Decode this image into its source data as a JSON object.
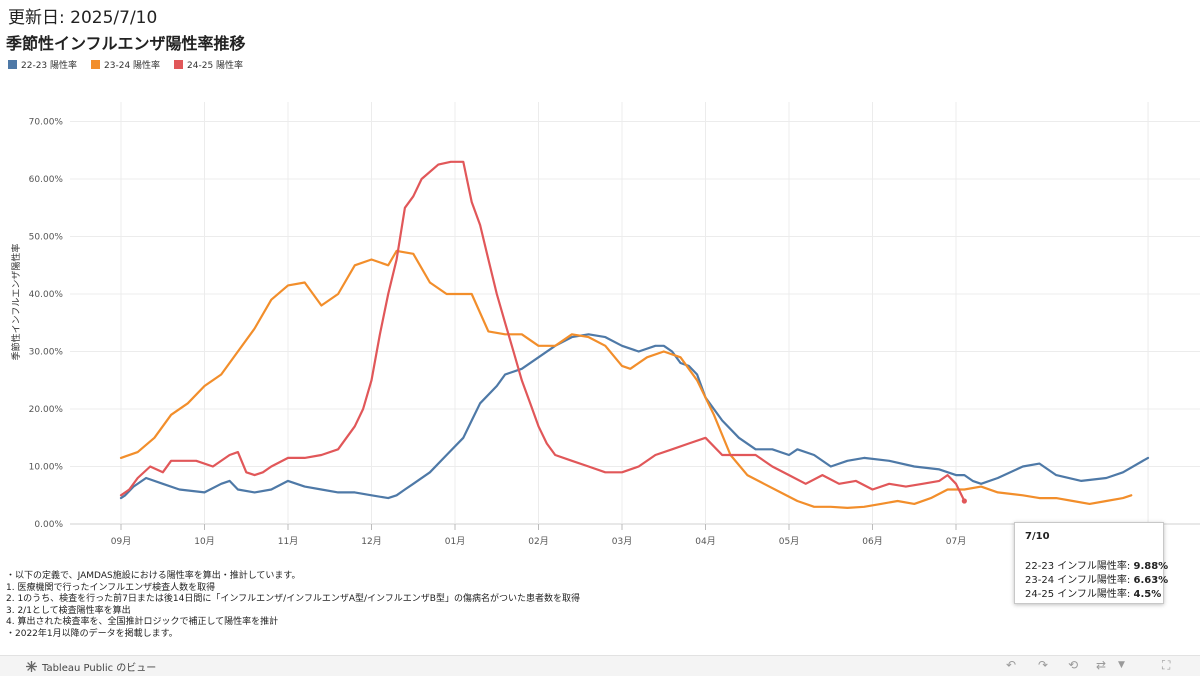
{
  "header": {
    "updated": "更新日: 2025/7/10",
    "title": "季節性インフルエンザ陽性率推移"
  },
  "chart_data": {
    "type": "line",
    "ylabel": "季節性インフルエンザ陽性率",
    "y_range": [
      0,
      0.72
    ],
    "y_ticks": [
      0,
      0.1,
      0.2,
      0.3,
      0.4,
      0.5,
      0.6,
      0.7
    ],
    "y_tick_labels": [
      "0.00%",
      "10.00%",
      "20.00%",
      "30.00%",
      "40.00%",
      "50.00%",
      "60.00%",
      "70.00%"
    ],
    "x_ticks": [
      "09月",
      "10月",
      "11月",
      "12月",
      "01月",
      "02月",
      "03月",
      "04月",
      "05月",
      "06月",
      "07月"
    ],
    "grid": true,
    "legend_position": "top-left",
    "x_months_range": [
      0,
      12.3
    ],
    "series": [
      {
        "name": "22-23 陽性率",
        "color": "#4e79a7",
        "x": [
          0,
          0.05,
          0.15,
          0.3,
          0.5,
          0.7,
          1.0,
          1.2,
          1.3,
          1.4,
          1.6,
          1.8,
          2.0,
          2.2,
          2.4,
          2.6,
          2.8,
          3.0,
          3.2,
          3.3,
          3.4,
          3.5,
          3.7,
          3.9,
          4.1,
          4.2,
          4.3,
          4.5,
          4.6,
          4.8,
          5.0,
          5.2,
          5.4,
          5.6,
          5.8,
          6.0,
          6.2,
          6.4,
          6.5,
          6.6,
          6.7,
          6.8,
          6.9,
          7.0,
          7.2,
          7.4,
          7.6,
          7.8,
          8.0,
          8.1,
          8.3,
          8.5,
          8.7,
          8.9,
          9.2,
          9.5,
          9.8,
          10.0,
          10.1,
          10.2,
          10.3,
          10.5,
          10.8,
          11.0,
          11.2,
          11.5,
          11.8,
          12.0
        ],
        "y": [
          0.045,
          0.05,
          0.065,
          0.08,
          0.07,
          0.06,
          0.055,
          0.07,
          0.075,
          0.06,
          0.055,
          0.06,
          0.075,
          0.065,
          0.06,
          0.055,
          0.055,
          0.05,
          0.045,
          0.05,
          0.06,
          0.07,
          0.09,
          0.12,
          0.15,
          0.18,
          0.21,
          0.24,
          0.26,
          0.27,
          0.29,
          0.31,
          0.325,
          0.33,
          0.325,
          0.31,
          0.3,
          0.31,
          0.31,
          0.3,
          0.28,
          0.275,
          0.26,
          0.22,
          0.18,
          0.15,
          0.13,
          0.13,
          0.12,
          0.13,
          0.12,
          0.1,
          0.11,
          0.115,
          0.11,
          0.1,
          0.095,
          0.085,
          0.085,
          0.075,
          0.07,
          0.08,
          0.1,
          0.105,
          0.085,
          0.075,
          0.08,
          0.09
        ],
        "final_point": [
          12.3,
          0.115
        ]
      },
      {
        "name": "23-24 陽性率",
        "color": "#f28e2b",
        "x": [
          0,
          0.2,
          0.4,
          0.6,
          0.8,
          1.0,
          1.2,
          1.4,
          1.6,
          1.8,
          2.0,
          2.2,
          2.4,
          2.6,
          2.8,
          3.0,
          3.2,
          3.3,
          3.5,
          3.7,
          3.9,
          4.0,
          4.2,
          4.4,
          4.6,
          4.8,
          5.0,
          5.2,
          5.4,
          5.6,
          5.8,
          6.0,
          6.1,
          6.3,
          6.5,
          6.7,
          6.9,
          7.1,
          7.3,
          7.5,
          7.7,
          7.9,
          8.1,
          8.3,
          8.5,
          8.7,
          8.9,
          9.1,
          9.3,
          9.5,
          9.7,
          9.9,
          10.1,
          10.3,
          10.5,
          10.8,
          11.0,
          11.2,
          11.4,
          11.6,
          11.8,
          12.0,
          12.1
        ],
        "y": [
          0.115,
          0.125,
          0.15,
          0.19,
          0.21,
          0.24,
          0.26,
          0.3,
          0.34,
          0.39,
          0.415,
          0.42,
          0.38,
          0.4,
          0.45,
          0.46,
          0.45,
          0.475,
          0.47,
          0.42,
          0.4,
          0.4,
          0.4,
          0.335,
          0.33,
          0.33,
          0.31,
          0.31,
          0.33,
          0.325,
          0.31,
          0.275,
          0.27,
          0.29,
          0.3,
          0.29,
          0.25,
          0.19,
          0.12,
          0.085,
          0.07,
          0.055,
          0.04,
          0.03,
          0.03,
          0.028,
          0.03,
          0.035,
          0.04,
          0.035,
          0.045,
          0.06,
          0.06,
          0.065,
          0.055,
          0.05,
          0.045,
          0.045,
          0.04,
          0.035,
          0.04,
          0.045,
          0.05
        ]
      },
      {
        "name": "24-25 陽性率",
        "color": "#e15759",
        "x": [
          0,
          0.1,
          0.2,
          0.35,
          0.5,
          0.6,
          0.7,
          0.9,
          1.1,
          1.3,
          1.4,
          1.5,
          1.6,
          1.7,
          1.8,
          2.0,
          2.2,
          2.4,
          2.6,
          2.8,
          2.9,
          3.0,
          3.1,
          3.2,
          3.3,
          3.4,
          3.5,
          3.6,
          3.8,
          3.95,
          4.1,
          4.2,
          4.3,
          4.4,
          4.5,
          4.6,
          4.7,
          4.8,
          4.9,
          5.0,
          5.1,
          5.2,
          5.4,
          5.6,
          5.8,
          6.0,
          6.2,
          6.4,
          6.6,
          6.8,
          7.0,
          7.2,
          7.4,
          7.6,
          7.8,
          8.0,
          8.2,
          8.4,
          8.6,
          8.8,
          9.0,
          9.2,
          9.4,
          9.6,
          9.8,
          9.9,
          10.0,
          10.1
        ],
        "y": [
          0.05,
          0.06,
          0.08,
          0.1,
          0.09,
          0.11,
          0.11,
          0.11,
          0.1,
          0.12,
          0.125,
          0.09,
          0.085,
          0.09,
          0.1,
          0.115,
          0.115,
          0.12,
          0.13,
          0.17,
          0.2,
          0.25,
          0.33,
          0.4,
          0.46,
          0.55,
          0.57,
          0.6,
          0.625,
          0.63,
          0.63,
          0.56,
          0.52,
          0.46,
          0.4,
          0.35,
          0.3,
          0.25,
          0.21,
          0.17,
          0.14,
          0.12,
          0.11,
          0.1,
          0.09,
          0.09,
          0.1,
          0.12,
          0.13,
          0.14,
          0.15,
          0.12,
          0.12,
          0.12,
          0.1,
          0.085,
          0.07,
          0.085,
          0.07,
          0.075,
          0.06,
          0.07,
          0.065,
          0.07,
          0.075,
          0.085,
          0.07,
          0.04
        ]
      }
    ]
  },
  "notes": [
    "・以下の定義で、JAMDAS施設における陽性率を算出・推計しています。",
    "1. 医療機関で行ったインフルエンザ検査人数を取得",
    "2. 1のうち、検査を行った前7日または後14日間に「インフルエンザ/インフルエンザA型/インフルエンザB型」の傷病名がついた患者数を取得",
    "3. 2/1として検査陽性率を算出",
    "4. 算出された検査率を、全国推計ロジックで補正して陽性率を推計",
    "・2022年1月以降のデータを掲載します。"
  ],
  "tooltip": {
    "date": "7/10",
    "rows": [
      {
        "label": "22-23 インフル陽性率:",
        "value": "9.88%"
      },
      {
        "label": "23-24 インフル陽性率:",
        "value": "6.63%"
      },
      {
        "label": "24-25 インフル陽性率:",
        "value": "4.5%"
      }
    ]
  },
  "footer": {
    "brand": "Tableau Public のビュー"
  },
  "icons": [
    "tableau-logo-icon",
    "undo-icon",
    "redo-icon",
    "revert-icon",
    "share-icon",
    "dropdown-icon",
    "fullscreen-icon"
  ]
}
